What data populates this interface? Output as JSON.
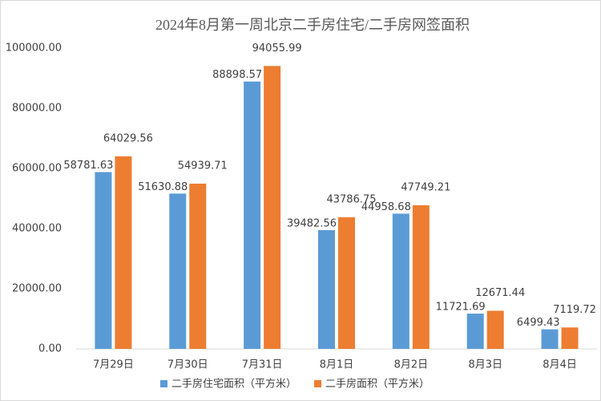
{
  "chart_data": {
    "type": "bar",
    "title": "2024年8月第一周北京二手房住宅/二手房网签面积",
    "categories": [
      "7月29日",
      "7月30日",
      "7月31日",
      "8月1日",
      "8月2日",
      "8月3日",
      "8月4日"
    ],
    "series": [
      {
        "name": "二手房住宅面积（平方米）",
        "color": "#5b9bd5",
        "values": [
          58781.63,
          51630.88,
          88898.57,
          39482.56,
          44958.68,
          11721.69,
          6499.43
        ]
      },
      {
        "name": "二手房面积（平方米）",
        "color": "#ed7d31",
        "values": [
          64029.56,
          54939.71,
          94055.99,
          43786.75,
          47749.21,
          12671.44,
          7119.72
        ]
      }
    ],
    "ylim": [
      0,
      100000
    ],
    "yticks": [
      {
        "value": 0,
        "label": "0.00"
      },
      {
        "value": 20000,
        "label": "20000.00"
      },
      {
        "value": 40000,
        "label": "40000.00"
      },
      {
        "value": 60000,
        "label": "60000.00"
      },
      {
        "value": 80000,
        "label": "80000.00"
      },
      {
        "value": 100000,
        "label": "100000.00"
      }
    ],
    "grid": false,
    "legend": "bottom"
  }
}
